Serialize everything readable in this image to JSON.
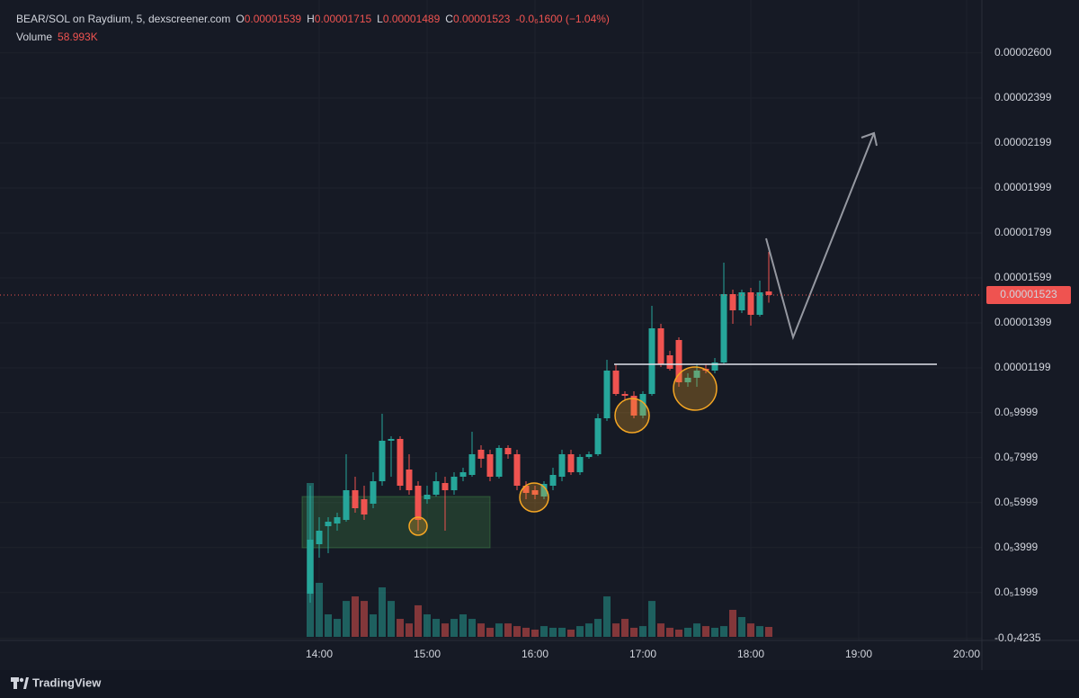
{
  "chart_data": {
    "type": "candlestick",
    "symbol": "BEAR/SOL on Raydium, 5, dexscreener.com",
    "ohlc_legend": [
      {
        "key": "O",
        "value": "0.00001539"
      },
      {
        "key": "H",
        "value": "0.00001715"
      },
      {
        "key": "L",
        "value": "0.00001489"
      },
      {
        "key": "C",
        "value": "0.00001523"
      }
    ],
    "change": "-0.0₆1600 (−1.04%)",
    "volume_title": "Volume",
    "volume_value": "58.993K",
    "brand": "TradingView",
    "up_color": "#26a69a",
    "down_color": "#ef5350",
    "grid": true,
    "x": [
      "13:55",
      "14:00",
      "14:05",
      "14:10",
      "14:15",
      "14:20",
      "14:25",
      "14:30",
      "14:35",
      "14:40",
      "14:45",
      "14:50",
      "14:55",
      "15:00",
      "15:05",
      "15:10",
      "15:15",
      "15:20",
      "15:25",
      "15:30",
      "15:35",
      "15:40",
      "15:45",
      "15:50",
      "15:55",
      "16:00",
      "16:05",
      "16:10",
      "16:15",
      "16:20",
      "16:25",
      "16:30",
      "16:35",
      "16:40",
      "16:45",
      "16:50",
      "16:55",
      "17:00",
      "17:05",
      "17:10",
      "17:15",
      "17:20",
      "17:25",
      "17:30",
      "17:35",
      "17:40",
      "17:45",
      "17:50",
      "17:55",
      "18:00",
      "18:05",
      "18:10"
    ],
    "open": [
      1.95e-06,
      4.15e-06,
      4.95e-06,
      5.07e-06,
      5.23e-06,
      6.55e-06,
      6.15e-06,
      5.95e-06,
      6.95e-06,
      8.75e-06,
      8.83e-06,
      7.47e-06,
      6.75e-06,
      6.15e-06,
      6.35e-06,
      6.87e-06,
      6.55e-06,
      7.15e-06,
      7.23e-06,
      8.35e-06,
      8.15e-06,
      7.15e-06,
      8.43e-06,
      8.15e-06,
      6.75e-06,
      6.55e-06,
      6.27e-06,
      6.75e-06,
      7.15e-06,
      8.15e-06,
      7.35e-06,
      8.03e-06,
      8.15e-06,
      9.75e-06,
      1.187e-05,
      1.083e-05,
      1.075e-05,
      9.87e-06,
      1.083e-05,
      1.375e-05,
      1.255e-05,
      1.323e-05,
      1.135e-05,
      1.155e-05,
      1.195e-05,
      1.187e-05,
      1.223e-05,
      1.527e-05,
      1.455e-05,
      1.535e-05,
      1.435e-05,
      1.539e-05
    ],
    "high": [
      6.75e-06,
      5.35e-06,
      5.35e-06,
      5.55e-06,
      8.15e-06,
      7.15e-06,
      6.75e-06,
      7.35e-06,
      9.95e-06,
      8.95e-06,
      8.95e-06,
      8.15e-06,
      6.95e-06,
      6.75e-06,
      7.35e-06,
      7.15e-06,
      7.35e-06,
      7.55e-06,
      9.15e-06,
      8.55e-06,
      8.35e-06,
      8.55e-06,
      8.55e-06,
      8.35e-06,
      6.95e-06,
      6.75e-06,
      6.95e-06,
      7.55e-06,
      8.35e-06,
      8.35e-06,
      8.15e-06,
      8.27e-06,
      9.95e-06,
      1.235e-05,
      1.215e-05,
      1.095e-05,
      1.095e-05,
      1.095e-05,
      1.475e-05,
      1.395e-05,
      1.275e-05,
      1.335e-05,
      1.175e-05,
      1.215e-05,
      1.215e-05,
      1.243e-05,
      1.667e-05,
      1.547e-05,
      1.547e-05,
      1.555e-05,
      1.587e-05,
      1.715e-05
    ],
    "low": [
      1.55e-06,
      3.55e-06,
      3.75e-06,
      4.75e-06,
      5.15e-06,
      5.55e-06,
      5.23e-06,
      5.75e-06,
      6.75e-06,
      7.15e-06,
      6.55e-06,
      6.35e-06,
      4.75e-06,
      5.95e-06,
      6.27e-06,
      4.75e-06,
      6.35e-06,
      6.95e-06,
      7.15e-06,
      7.55e-06,
      6.95e-06,
      7.07e-06,
      7.95e-06,
      6.55e-06,
      6.15e-06,
      6.15e-06,
      6.15e-06,
      6.55e-06,
      6.95e-06,
      7.23e-06,
      7.23e-06,
      7.95e-06,
      8.07e-06,
      9.63e-06,
      1.075e-05,
      1.055e-05,
      9.75e-06,
      9.75e-06,
      1.075e-05,
      1.203e-05,
      1.187e-05,
      1.115e-05,
      1.115e-05,
      1.115e-05,
      1.175e-05,
      1.175e-05,
      1.215e-05,
      1.395e-05,
      1.443e-05,
      1.387e-05,
      1.427e-05,
      1.489e-05
    ],
    "close": [
      4.35e-06,
      4.75e-06,
      5.15e-06,
      5.35e-06,
      6.55e-06,
      5.75e-06,
      5.47e-06,
      6.95e-06,
      8.75e-06,
      8.83e-06,
      6.75e-06,
      6.55e-06,
      5.23e-06,
      6.35e-06,
      6.95e-06,
      6.55e-06,
      7.15e-06,
      7.35e-06,
      8.15e-06,
      7.95e-06,
      7.15e-06,
      8.43e-06,
      8.15e-06,
      6.75e-06,
      6.43e-06,
      6.35e-06,
      6.83e-06,
      7.23e-06,
      8.15e-06,
      7.35e-06,
      8.03e-06,
      8.15e-06,
      9.75e-06,
      1.187e-05,
      1.083e-05,
      1.075e-05,
      9.87e-06,
      1.083e-05,
      1.375e-05,
      1.215e-05,
      1.195e-05,
      1.135e-05,
      1.155e-05,
      1.187e-05,
      1.187e-05,
      1.223e-05,
      1.527e-05,
      1.455e-05,
      1.535e-05,
      1.435e-05,
      1.535e-05,
      1.523e-05
    ],
    "volume": [
      917000,
      322000,
      134000,
      107000,
      214000,
      241000,
      214000,
      134000,
      295000,
      214000,
      107000,
      80000,
      188000,
      134000,
      107000,
      80000,
      107000,
      134000,
      107000,
      80000,
      54000,
      80000,
      80000,
      64000,
      54000,
      43000,
      64000,
      54000,
      54000,
      43000,
      64000,
      80000,
      107000,
      241000,
      80000,
      107000,
      54000,
      64000,
      214000,
      80000,
      54000,
      43000,
      54000,
      80000,
      64000,
      54000,
      64000,
      161000,
      118000,
      80000,
      64000,
      58993
    ],
    "last_price": {
      "value": 1.523e-05,
      "label": "0.00001523"
    },
    "ylim": [
      -1.3e-07,
      2.835e-05
    ],
    "yticks": [
      {
        "value": 2.6e-05,
        "label": "0.00002600"
      },
      {
        "value": 2.399e-05,
        "label": "0.00002399"
      },
      {
        "value": 2.199e-05,
        "label": "0.00002199"
      },
      {
        "value": 1.999e-05,
        "label": "0.00001999"
      },
      {
        "value": 1.799e-05,
        "label": "0.00001799"
      },
      {
        "value": 1.599e-05,
        "label": "0.00001599"
      },
      {
        "value": 1.399e-05,
        "label": "0.00001399"
      },
      {
        "value": 1.199e-05,
        "label": "0.00001199"
      },
      {
        "value": 9.999e-06,
        "label": "0.0₅9999"
      },
      {
        "value": 7.999e-06,
        "label": "0.0₅7999"
      },
      {
        "value": 5.999e-06,
        "label": "0.0₅5999"
      },
      {
        "value": 3.999e-06,
        "label": "0.0₅3999"
      },
      {
        "value": 1.999e-06,
        "label": "0.0₅1999"
      },
      {
        "value": -4.235e-08,
        "label": "-0.0₇4235"
      }
    ],
    "xticks": [
      "14:00",
      "15:00",
      "16:00",
      "17:00",
      "18:00",
      "19:00",
      "20:00"
    ]
  }
}
